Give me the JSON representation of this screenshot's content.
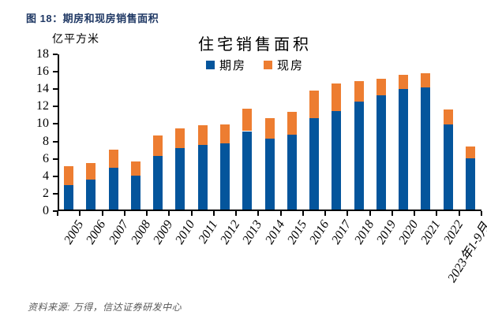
{
  "figure": {
    "caption": "图 18：期房和现房销售面积",
    "source": "资料来源: 万得，信达证券研发中心"
  },
  "chart_data": {
    "type": "bar",
    "stacked": true,
    "title": "住宅销售面积",
    "unit_label": "亿平方米",
    "xlabel": "",
    "ylabel": "亿平方米",
    "ylim": [
      0,
      18
    ],
    "ytick_step": 2,
    "grid": false,
    "legend_position": "top-center",
    "categories": [
      "2005",
      "2006",
      "2007",
      "2008",
      "2009",
      "2010",
      "2011",
      "2012",
      "2013",
      "2014",
      "2015",
      "2016",
      "2017",
      "2018",
      "2019",
      "2020",
      "2021",
      "2022",
      "2023年1-9月"
    ],
    "series": [
      {
        "name": "期房",
        "color": "#04559c",
        "values": [
          2.8,
          3.45,
          4.75,
          3.85,
          6.15,
          7.05,
          7.45,
          7.6,
          9.0,
          8.1,
          8.6,
          10.45,
          11.3,
          12.4,
          13.15,
          13.85,
          14.0,
          9.75,
          5.9
        ]
      },
      {
        "name": "现房",
        "color": "#ed7d31",
        "values": [
          2.15,
          1.9,
          2.15,
          1.7,
          2.35,
          2.25,
          2.25,
          2.2,
          2.55,
          2.4,
          2.6,
          3.25,
          3.15,
          2.35,
          1.85,
          1.65,
          1.65,
          1.7,
          1.3
        ]
      }
    ]
  },
  "colors": {
    "caption_text": "#1f3864",
    "axis": "#000000",
    "source_text": "#595959",
    "background": "#ffffff"
  }
}
